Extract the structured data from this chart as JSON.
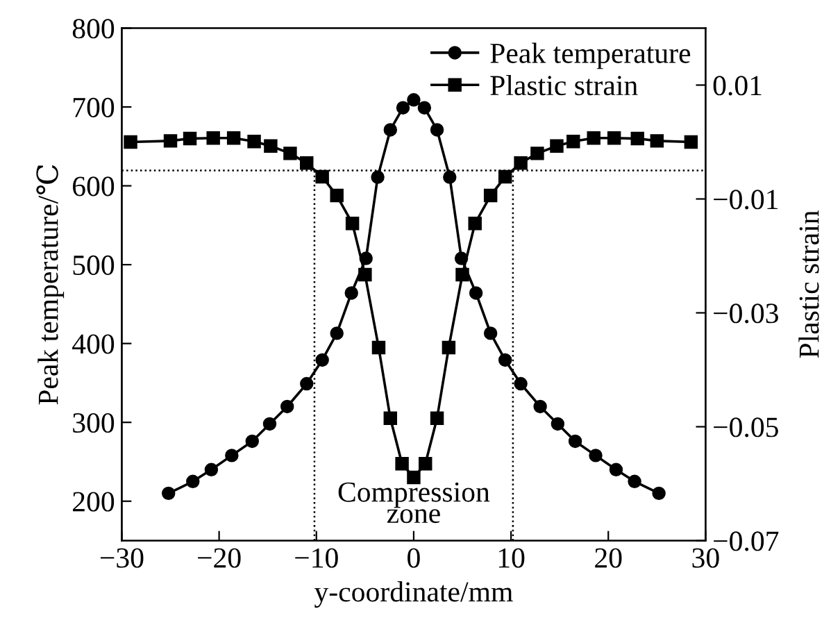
{
  "chart_data": {
    "type": "line",
    "xlabel": "y-coordinate/mm",
    "ylabel": "Peak temperature/℃",
    "y2label": "Plastic strain",
    "xlim": [
      -30,
      30
    ],
    "xticks": [
      {
        "value": -30,
        "label": "−30"
      },
      {
        "value": -20,
        "label": "−20"
      },
      {
        "value": -10,
        "label": "−10"
      },
      0,
      10,
      20,
      30
    ],
    "ylim": [
      150,
      800
    ],
    "yticks": [
      200,
      300,
      400,
      500,
      600,
      700,
      800
    ],
    "y2lim": [
      -0.07,
      0.02
    ],
    "y2ticks": [
      {
        "value": -0.07,
        "label": "−0.07"
      },
      {
        "value": -0.05,
        "label": "−0.05"
      },
      {
        "value": -0.03,
        "label": "−0.03"
      },
      {
        "value": -0.01,
        "label": "−0.01"
      },
      {
        "value": 0.01,
        "label": "0.01"
      }
    ],
    "grid": false,
    "legend": "top right",
    "line_style": "solid",
    "series": [
      {
        "name": "Peak temperature",
        "color": "#000000",
        "marker": "circle",
        "x": [
          -25.2,
          -22.7,
          -20.8,
          -18.7,
          -16.6,
          -14.8,
          -13,
          -11,
          -9.4,
          -7.9,
          -6.4,
          -4.9,
          -3.7,
          -2.4,
          -1.1,
          0,
          1.1,
          2.4,
          3.7,
          4.9,
          6.4,
          7.9,
          9.4,
          11,
          13,
          14.8,
          16.6,
          18.7,
          20.8,
          22.7,
          25.2
        ],
        "values": [
          210,
          225,
          240,
          258,
          276,
          298,
          320,
          349,
          379,
          413,
          464,
          508,
          611,
          671,
          699,
          709,
          699,
          671,
          611,
          508,
          464,
          413,
          379,
          349,
          320,
          298,
          276,
          258,
          240,
          225,
          210
        ]
      },
      {
        "name": "Plastic strain",
        "color": "#000000",
        "marker": "square",
        "axis": "y2",
        "x": [
          -29.1,
          -25,
          -23,
          -20.6,
          -18.5,
          -16.4,
          -14.7,
          -12.7,
          -11,
          -9.4,
          -7.9,
          -6.3,
          -5,
          -3.6,
          -2.4,
          -1.2,
          0,
          1.2,
          2.4,
          3.6,
          5,
          6.3,
          7.9,
          9.4,
          11,
          12.7,
          14.7,
          16.4,
          18.5,
          20.6,
          23,
          25,
          28.5
        ],
        "values": [
          0.0,
          0.0002,
          0.0006,
          0.0007,
          0.0007,
          0.0001,
          -0.0007,
          -0.002,
          -0.0037,
          -0.0061,
          -0.0094,
          -0.0143,
          -0.0233,
          -0.0361,
          -0.0485,
          -0.0565,
          -0.0589,
          -0.0565,
          -0.0485,
          -0.0361,
          -0.0233,
          -0.0143,
          -0.0094,
          -0.0061,
          -0.0037,
          -0.002,
          -0.0007,
          0.0001,
          0.0007,
          0.0007,
          0.0006,
          0.0002,
          0.0
        ]
      }
    ],
    "ref_lines": [
      {
        "axis": "y2",
        "value": -0.005,
        "line_style": "dotted",
        "color": "#000000"
      },
      {
        "axis": "x",
        "value": -10.2,
        "line_style": "dotted",
        "color": "#000000"
      },
      {
        "axis": "x",
        "value": 10.2,
        "line_style": "dotted",
        "color": "#000000"
      }
    ],
    "annotations": [
      {
        "text": "Compression\nzone",
        "x": 0,
        "y": 225
      }
    ]
  }
}
